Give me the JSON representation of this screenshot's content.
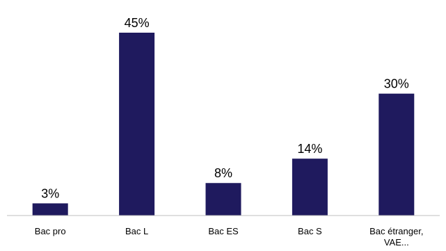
{
  "chart_data": {
    "type": "bar",
    "categories": [
      [
        "Bac pro"
      ],
      [
        "Bac L"
      ],
      [
        "Bac ES"
      ],
      [
        "Bac S"
      ],
      [
        "Bac étranger,",
        "VAE..."
      ]
    ],
    "values": [
      3,
      45,
      8,
      14,
      30
    ],
    "value_labels": [
      "3%",
      "45%",
      "8%",
      "14%",
      "30%"
    ],
    "ylim": [
      0,
      45
    ],
    "grid": false,
    "legend": "none",
    "bar_color": "#1f1a5e",
    "axis_color": "#bfbfbf"
  }
}
